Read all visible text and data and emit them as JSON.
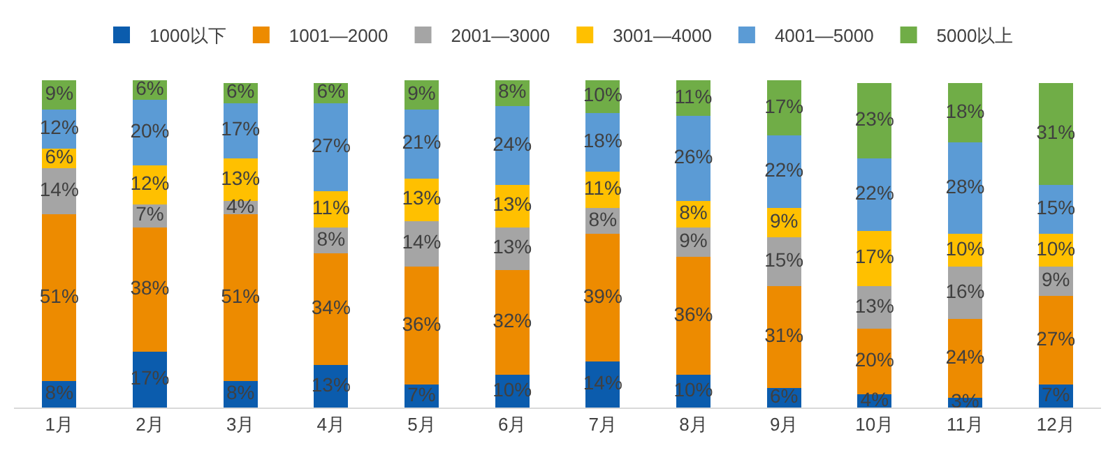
{
  "chart_data": {
    "type": "bar",
    "stacked": true,
    "legend": "top",
    "grid": false,
    "tick_labels": "x",
    "categories": [
      "1月",
      "2月",
      "3月",
      "4月",
      "5月",
      "6月",
      "7月",
      "8月",
      "9月",
      "10月",
      "11月",
      "12月"
    ],
    "series": [
      {
        "name": "1000以下",
        "color": "#0b5cad",
        "values": [
          8,
          17,
          8,
          13,
          7,
          10,
          14,
          10,
          6,
          4,
          3,
          7
        ],
        "value_labels": [
          "8%",
          "17%",
          "8%",
          "13%",
          "7%",
          "10%",
          "14%",
          "10%",
          "6%",
          "4%",
          "3%",
          "7%"
        ]
      },
      {
        "name": "1001—2000",
        "color": "#ed8b00",
        "values": [
          51,
          38,
          51,
          34,
          36,
          32,
          39,
          36,
          31,
          20,
          24,
          27
        ],
        "value_labels": [
          "51%",
          "38%",
          "51%",
          "34%",
          "36%",
          "32%",
          "39%",
          "36%",
          "31%",
          "20%",
          "24%",
          "27%"
        ]
      },
      {
        "name": "2001—3000",
        "color": "#a5a5a5",
        "values": [
          14,
          7,
          4,
          8,
          14,
          13,
          8,
          9,
          15,
          13,
          16,
          9
        ],
        "value_labels": [
          "14%",
          "7%",
          "4%",
          "8%",
          "14%",
          "13%",
          "8%",
          "9%",
          "15%",
          "13%",
          "16%",
          "9%"
        ]
      },
      {
        "name": "3001—4000",
        "color": "#ffc000",
        "values": [
          6,
          12,
          13,
          11,
          13,
          13,
          11,
          8,
          9,
          17,
          10,
          10
        ],
        "value_labels": [
          "6%",
          "12%",
          "13%",
          "11%",
          "13%",
          "13%",
          "11%",
          "8%",
          "9%",
          "17%",
          "10%",
          "10%"
        ]
      },
      {
        "name": "4001—5000",
        "color": "#5b9bd5",
        "values": [
          12,
          20,
          17,
          27,
          21,
          24,
          18,
          26,
          22,
          22,
          28,
          15
        ],
        "value_labels": [
          "12%",
          "20%",
          "17%",
          "27%",
          "21%",
          "24%",
          "18%",
          "26%",
          "22%",
          "22%",
          "28%",
          "15%"
        ]
      },
      {
        "name": "5000以上",
        "color": "#70ad47",
        "values": [
          9,
          6,
          6,
          6,
          9,
          8,
          10,
          11,
          17,
          23,
          18,
          31
        ],
        "value_labels": [
          "9%",
          "6%",
          "6%",
          "6%",
          "9%",
          "8%",
          "10%",
          "11%",
          "17%",
          "23%",
          "18%",
          "31%"
        ]
      }
    ]
  }
}
